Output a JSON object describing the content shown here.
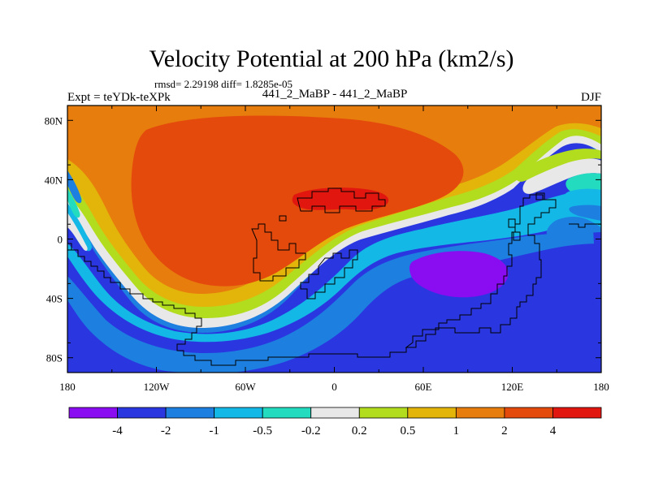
{
  "chart_data": {
    "type": "heatmap",
    "title": "Velocity Potential at 200 hPa (km2/s)",
    "stats_label": "rmsd= 2.29198 diff= 1.8285e-05",
    "left_label": "Expt = teYDk-teXPk",
    "center_label": "441_2_MaBP - 441_2_MaBP",
    "right_label": "DJF",
    "x_ticks": [
      "180",
      "120W",
      "60W",
      "0",
      "60E",
      "120E",
      "180"
    ],
    "x_values": [
      -180,
      -120,
      -60,
      0,
      60,
      120,
      180
    ],
    "y_ticks": [
      "80N",
      "40N",
      "0",
      "40S",
      "80S"
    ],
    "y_values": [
      80,
      40,
      0,
      -40,
      -80
    ],
    "xlim": [
      -180,
      180
    ],
    "ylim": [
      -90,
      90
    ],
    "colorbar": {
      "colors": [
        "#8a0cf0",
        "#2a37e0",
        "#1d7fe0",
        "#14b8e6",
        "#23dcc0",
        "#e8e8e8",
        "#b2dc1e",
        "#e3b40a",
        "#e77d0d",
        "#e44a0c",
        "#e0160f"
      ],
      "labels": [
        "-4",
        "-2",
        "-1",
        "-0.5",
        "-0.2",
        "0.2",
        "0.5",
        "1",
        "2",
        "4"
      ]
    }
  }
}
